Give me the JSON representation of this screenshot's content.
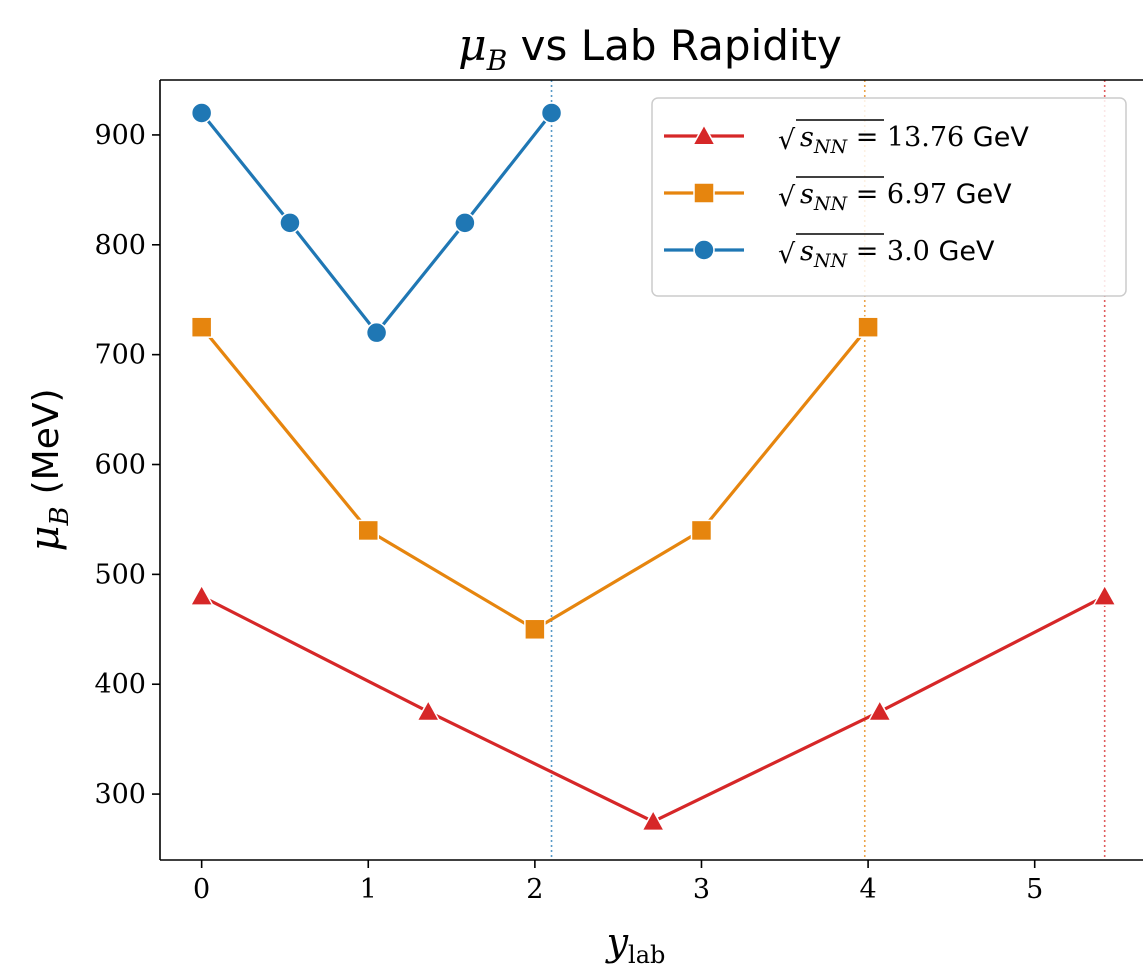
{
  "chart_data": {
    "type": "line",
    "title": {
      "symbol": "μ",
      "sub": "B",
      "rest": " vs Lab Rapidity"
    },
    "xlabel": {
      "symbol": "y",
      "sub": "lab"
    },
    "ylabel": {
      "symbol": "μ",
      "sub": "B",
      "rest": "(MeV)"
    },
    "xlim": [
      -0.25,
      5.65
    ],
    "ylim": [
      240,
      950
    ],
    "xticks": [
      0,
      1,
      2,
      3,
      4,
      5
    ],
    "yticks": [
      300,
      400,
      500,
      600,
      700,
      800,
      900
    ],
    "grid": false,
    "legend_position": "top-right",
    "series": [
      {
        "name": "√s_NN = 13.76 GeV",
        "energy": "13.76",
        "color": "#d62728",
        "marker": "triangle",
        "x": [
          0,
          1.36,
          2.71,
          4.07,
          5.42
        ],
        "y": [
          480,
          375,
          275,
          375,
          480
        ],
        "beam_rapidity": 5.42
      },
      {
        "name": "√s_NN = 6.97 GeV",
        "energy": "6.97",
        "color": "#e6850e",
        "marker": "square",
        "x": [
          0,
          1.0,
          2.0,
          3.0,
          4.0
        ],
        "y": [
          725,
          540,
          450,
          540,
          725
        ],
        "beam_rapidity": 3.98
      },
      {
        "name": "√s_NN = 3.0 GeV",
        "energy": "3.0",
        "color": "#1f77b4",
        "marker": "circle",
        "x": [
          0,
          0.53,
          1.05,
          1.58,
          2.1
        ],
        "y": [
          920,
          820,
          720,
          820,
          920
        ],
        "beam_rapidity": 2.1
      }
    ],
    "legend": [
      {
        "prefix": "√",
        "radicand": "s",
        "radicand_sub": "NN",
        "eq": " = ",
        "value": "13.76",
        "unit": " GeV"
      },
      {
        "prefix": "√",
        "radicand": "s",
        "radicand_sub": "NN",
        "eq": " = ",
        "value": "6.97",
        "unit": " GeV"
      },
      {
        "prefix": "√",
        "radicand": "s",
        "radicand_sub": "NN",
        "eq": " = ",
        "value": "3.0",
        "unit": " GeV"
      }
    ]
  }
}
